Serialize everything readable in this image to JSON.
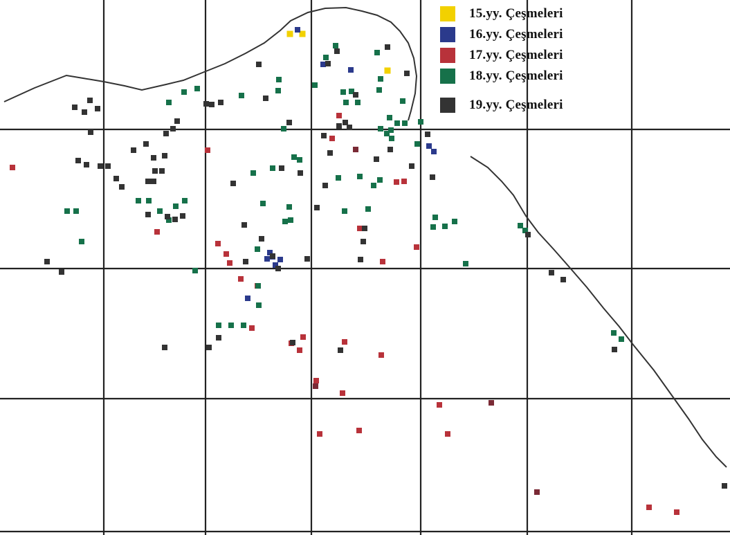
{
  "legend": {
    "items": [
      {
        "key": "c15",
        "label": "15.yy. Çeşmeleri",
        "color": "#f2d100"
      },
      {
        "key": "c16",
        "label": "16.yy. Çeşmeleri",
        "color": "#2b3a8c"
      },
      {
        "key": "c17",
        "label": "17.yy. Çeşmeleri",
        "color": "#b8323a"
      },
      {
        "key": "c18",
        "label": "18.yy. Çeşmeleri",
        "color": "#16714a"
      },
      {
        "key": "c19",
        "label": "19.yy. Çeşmeleri",
        "color": "#333333"
      }
    ]
  },
  "colors": {
    "grid": "#222222",
    "coastline": "#333333",
    "marker_dark_red": "#7a2a35"
  }
}
